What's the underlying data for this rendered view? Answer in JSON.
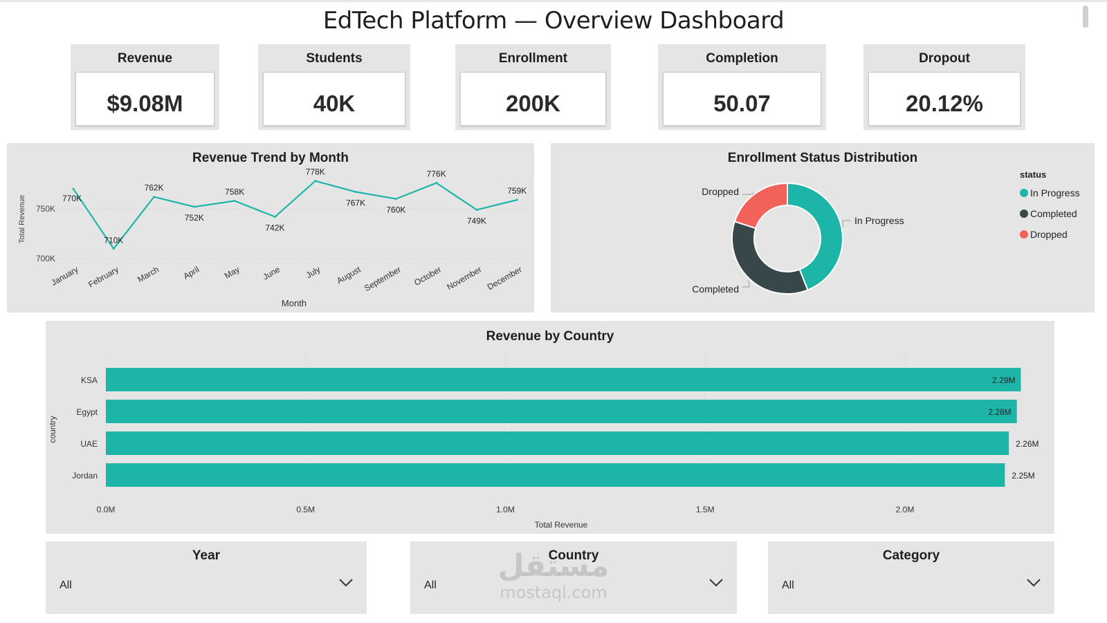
{
  "title": "EdTech Platform — Overview Dashboard",
  "kpis": [
    {
      "label": "Revenue",
      "value": "$9.08M"
    },
    {
      "label": "Students",
      "value": "40K"
    },
    {
      "label": "Enrollment",
      "value": "200K"
    },
    {
      "label": "Completion",
      "value": "50.07"
    },
    {
      "label": "Dropout",
      "value": "20.12%"
    }
  ],
  "colors": {
    "teal": "#1cb5a8",
    "dark": "#37474a",
    "red": "#f2625a",
    "panel": "#e5e5e5"
  },
  "chart_data": [
    {
      "type": "line",
      "title": "Revenue Trend by Month",
      "xlabel": "Month",
      "ylabel": "Total Revenue",
      "ylim": [
        700,
        780
      ],
      "yticks": [
        "700K",
        "750K"
      ],
      "categories": [
        "January",
        "February",
        "March",
        "April",
        "May",
        "June",
        "July",
        "August",
        "September",
        "October",
        "November",
        "December"
      ],
      "series": [
        {
          "values": [
            770,
            710,
            762,
            752,
            758,
            742,
            778,
            767,
            760,
            776,
            749,
            759
          ]
        }
      ],
      "data_labels": [
        "770K",
        "710K",
        "762K",
        "752K",
        "758K",
        "742K",
        "778K",
        "767K",
        "760K",
        "776K",
        "749K",
        "759K"
      ],
      "grid": true
    },
    {
      "type": "pie",
      "title": "Enrollment Status Distribution",
      "legend_title": "status",
      "legend_position": "right",
      "slices": [
        {
          "label": "In Progress",
          "value": 44,
          "color": "#1cb5a8"
        },
        {
          "label": "Completed",
          "value": 36,
          "color": "#37474a"
        },
        {
          "label": "Dropped",
          "value": 20,
          "color": "#f2625a"
        }
      ]
    },
    {
      "type": "bar",
      "orientation": "horizontal",
      "title": "Revenue by Country",
      "xlabel": "Total Revenue",
      "ylabel": "country",
      "categories": [
        "KSA",
        "Egypt",
        "UAE",
        "Jordan"
      ],
      "values": [
        2.29,
        2.28,
        2.26,
        2.25
      ],
      "data_labels": [
        "2.29M",
        "2.28M",
        "2.26M",
        "2.25M"
      ],
      "xlim": [
        0,
        2.35
      ],
      "xticks": [
        "0.0M",
        "0.5M",
        "1.0M",
        "1.5M",
        "2.0M"
      ],
      "grid": true
    }
  ],
  "filters": [
    {
      "label": "Year",
      "value": "All"
    },
    {
      "label": "Country",
      "value": "All"
    },
    {
      "label": "Category",
      "value": "All"
    }
  ],
  "watermark": {
    "arabic": "مستقل",
    "latin": "mostaql.com"
  }
}
